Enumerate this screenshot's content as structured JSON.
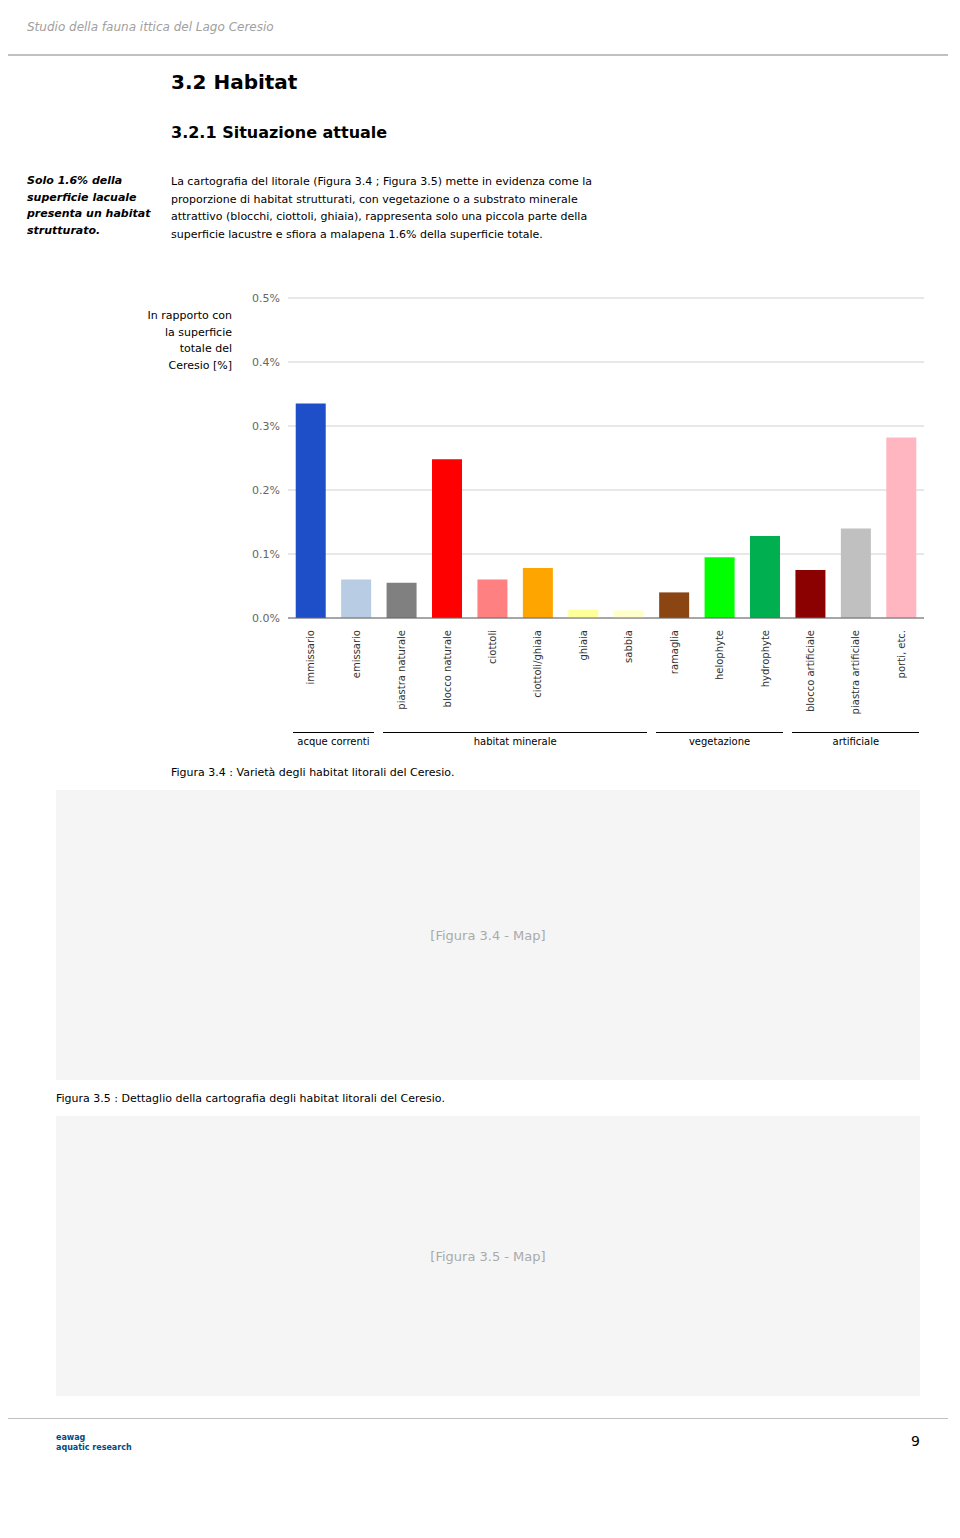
{
  "chart_data": {
    "type": "bar",
    "title": "3.2   Habitat",
    "subtitle": "3.2.1   Situazione attuale",
    "y_label": "In rapporto con\nla superficie\ntotale del\nCeresio [%]",
    "categories": [
      "immissario",
      "emissario",
      "piastra naturale",
      "blocco naturale",
      "ciottoli",
      "ciottoli/ghiaia",
      "ghiaia",
      "sabbia",
      "ramaglia",
      "helophyte",
      "hydrophyte",
      "blocco artificiale",
      "piastra artificiale",
      "porti, etc."
    ],
    "values": [
      0.335,
      0.06,
      0.055,
      0.248,
      0.06,
      0.078,
      0.013,
      0.012,
      0.04,
      0.095,
      0.128,
      0.075,
      0.14,
      0.282
    ],
    "colors": [
      "#1f4fc8",
      "#b8cce4",
      "#808080",
      "#ff0000",
      "#ff8080",
      "#ffa500",
      "#ffff99",
      "#ffffcc",
      "#8b4513",
      "#00ff00",
      "#00b050",
      "#8b0000",
      "#c0c0c0",
      "#ffb6c1"
    ],
    "groups": [
      {
        "label": "acque correnti",
        "categories": [
          "immissario",
          "emissario"
        ]
      },
      {
        "label": "habitat minerale",
        "categories": [
          "piastra naturale",
          "blocco naturale",
          "ciottoli",
          "ciottoli/ghiaia",
          "ghiaia",
          "sabbia"
        ]
      },
      {
        "label": "vegetazione",
        "categories": [
          "ramaglia",
          "helophyte",
          "hydrophyte"
        ]
      },
      {
        "label": "artificiale",
        "categories": [
          "blocco artificiale",
          "piastra artificiale",
          "porti, etc."
        ]
      }
    ],
    "ylim": [
      0,
      0.5
    ],
    "yticks": [
      {
        "value": 0.0,
        "label": "0.0%"
      },
      {
        "value": 0.1,
        "label": "0.1%"
      },
      {
        "value": 0.2,
        "label": "0.2%"
      },
      {
        "value": 0.3,
        "label": "0.3%"
      },
      {
        "value": 0.4,
        "label": "0.4%"
      },
      {
        "value": 0.5,
        "label": "0.5%"
      }
    ],
    "grid": true,
    "annotations": [
      "Studio della fauna ittica del Lago Ceresio",
      "Solo 1.6% della\nsuperficie lacuale\npresenta un habitat\nstrutturato.",
      "La cartografia del litorale (Figura 3.4 ; Figura 3.5) mette in evidenza come la\nproporzione di habitat strutturati, con vegetazione o a substrato minerale\nattrattivo (blocchi, ciottoli, ghiaia), rappresenta solo una piccola parte della\nsuperficie lacustre e sfiora a malapena 1.6% della superficie totale.",
      "Figura 3.4 : Varietà degli habitat litorali del Ceresio.",
      "[Figura 3.4 - Map]",
      "Figura 3.5 : Dettaglio della cartografia degli habitat litorali del Ceresio.",
      "[Figura 3.5 - Map]",
      "9",
      "eawag\naquatic research"
    ]
  }
}
